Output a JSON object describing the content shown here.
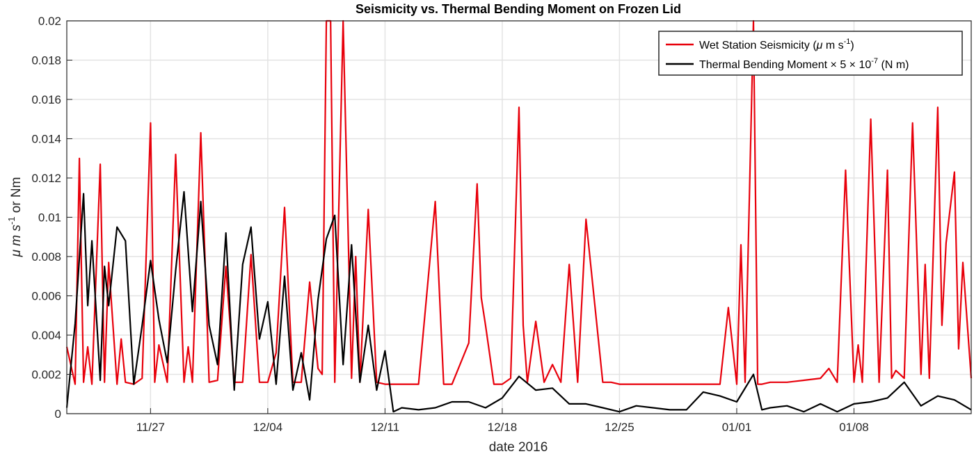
{
  "chart_data": {
    "type": "line",
    "title": "Seismicity vs. Thermal Bending Moment on Frozen Lid",
    "xlabel": "date 2016",
    "ylabel_main": "μ m s",
    "ylabel_exp": "-1",
    "ylabel_tail": "  or Nm",
    "x_range": [
      "2016-11-22",
      "2017-01-15"
    ],
    "ylim": [
      0,
      0.02
    ],
    "y_ticks": [
      0,
      0.002,
      0.004,
      0.006,
      0.008,
      0.01,
      0.012,
      0.014,
      0.016,
      0.018,
      0.02
    ],
    "y_tick_labels": [
      "0",
      "0.002",
      "0.004",
      "0.006",
      "0.008",
      "0.01",
      "0.012",
      "0.014",
      "0.016",
      "0.018",
      "0.02"
    ],
    "x_ticks": [
      "2016-11-27",
      "2016-12-04",
      "2016-12-11",
      "2016-12-18",
      "2016-12-25",
      "2017-01-01",
      "2017-01-08"
    ],
    "x_tick_labels": [
      "11/27",
      "12/04",
      "12/11",
      "12/18",
      "12/25",
      "01/01",
      "01/08"
    ],
    "grid": true,
    "legend_position": "top-right",
    "legend": [
      {
        "base": "Wet Station Seismicity (",
        "mu": "μ",
        "tail": " m s",
        "exp": "-1",
        "close": ")",
        "color": "#e8000b"
      },
      {
        "base": "Thermal Bending Moment ",
        "times1": "×",
        "five": " 5 ",
        "times2": "×",
        "ten": " 10",
        "exp": "-7",
        "units": "  (N m)",
        "color": "#000000"
      }
    ],
    "series": [
      {
        "name": "Wet Station Seismicity",
        "color": "#e8000b",
        "x": [
          "2016-11-22",
          "2016-11-22T12:00",
          "2016-11-22T18:00",
          "2016-11-23",
          "2016-11-23T06:00",
          "2016-11-23T12:00",
          "2016-11-24",
          "2016-11-24T06:00",
          "2016-11-24T12:00",
          "2016-11-25",
          "2016-11-25T06:00",
          "2016-11-25T12:00",
          "2016-11-26",
          "2016-11-26T12:00",
          "2016-11-27",
          "2016-11-27T06:00",
          "2016-11-27T12:00",
          "2016-11-28",
          "2016-11-28T12:00",
          "2016-11-29",
          "2016-11-29T06:00",
          "2016-11-29T12:00",
          "2016-11-30",
          "2016-11-30T12:00",
          "2016-12-01",
          "2016-12-01T12:00",
          "2016-12-02",
          "2016-12-02T12:00",
          "2016-12-03",
          "2016-12-03T12:00",
          "2016-12-04",
          "2016-12-04T12:00",
          "2016-12-05",
          "2016-12-05T12:00",
          "2016-12-06",
          "2016-12-06T12:00",
          "2016-12-07",
          "2016-12-07T06:00",
          "2016-12-07T12:00",
          "2016-12-07T18:00",
          "2016-12-08",
          "2016-12-08T12:00",
          "2016-12-09",
          "2016-12-09T06:00",
          "2016-12-09T12:00",
          "2016-12-10",
          "2016-12-10T12:00",
          "2016-12-11",
          "2016-12-12",
          "2016-12-13",
          "2016-12-14",
          "2016-12-14T12:00",
          "2016-12-15",
          "2016-12-16",
          "2016-12-16T12:00",
          "2016-12-16T18:00",
          "2016-12-17",
          "2016-12-17T12:00",
          "2016-12-18",
          "2016-12-18T12:00",
          "2016-12-19",
          "2016-12-19T06:00",
          "2016-12-19T12:00",
          "2016-12-20",
          "2016-12-20T12:00",
          "2016-12-21",
          "2016-12-21T12:00",
          "2016-12-22",
          "2016-12-22T12:00",
          "2016-12-23",
          "2016-12-24",
          "2016-12-24T12:00",
          "2016-12-25",
          "2016-12-26",
          "2016-12-27",
          "2016-12-28",
          "2016-12-29",
          "2016-12-30",
          "2016-12-31",
          "2016-12-31T12:00",
          "2017-01-01",
          "2017-01-01T06:00",
          "2017-01-01T12:00",
          "2017-01-02",
          "2017-01-02T06:00",
          "2017-01-02T12:00",
          "2017-01-03",
          "2017-01-04",
          "2017-01-05",
          "2017-01-06",
          "2017-01-06T12:00",
          "2017-01-07",
          "2017-01-07T12:00",
          "2017-01-08",
          "2017-01-08T06:00",
          "2017-01-08T12:00",
          "2017-01-09",
          "2017-01-09T12:00",
          "2017-01-10",
          "2017-01-10T06:00",
          "2017-01-10T12:00",
          "2017-01-11",
          "2017-01-11T12:00",
          "2017-01-12",
          "2017-01-12T06:00",
          "2017-01-12T12:00",
          "2017-01-13",
          "2017-01-13T06:00",
          "2017-01-13T12:00",
          "2017-01-14",
          "2017-01-14T06:00",
          "2017-01-14T12:00",
          "2017-01-15"
        ],
        "values": [
          0.0034,
          0.0015,
          0.013,
          0.0016,
          0.0034,
          0.0015,
          0.0127,
          0.0016,
          0.0077,
          0.0015,
          0.0038,
          0.0016,
          0.0015,
          0.0018,
          0.0148,
          0.0016,
          0.0035,
          0.0016,
          0.0132,
          0.0016,
          0.0034,
          0.0016,
          0.0143,
          0.0016,
          0.0017,
          0.0075,
          0.0016,
          0.0016,
          0.0081,
          0.0016,
          0.0016,
          0.0031,
          0.0105,
          0.0016,
          0.0016,
          0.0067,
          0.0023,
          0.002,
          0.02,
          0.02,
          0.0016,
          0.02,
          0.0018,
          0.008,
          0.0016,
          0.0104,
          0.0016,
          0.0015,
          0.0015,
          0.0015,
          0.0108,
          0.0015,
          0.0015,
          0.0036,
          0.0117,
          0.0059,
          0.0045,
          0.0015,
          0.0015,
          0.0018,
          0.0156,
          0.0045,
          0.0016,
          0.0047,
          0.0016,
          0.0025,
          0.0016,
          0.0076,
          0.0016,
          0.0099,
          0.0016,
          0.0016,
          0.0015,
          0.0015,
          0.0015,
          0.0015,
          0.0015,
          0.0015,
          0.0015,
          0.0054,
          0.0015,
          0.0086,
          0.0016,
          0.02,
          0.0015,
          0.0015,
          0.0016,
          0.0016,
          0.0017,
          0.0018,
          0.0023,
          0.0016,
          0.0124,
          0.0016,
          0.0035,
          0.0016,
          0.015,
          0.0016,
          0.0124,
          0.0018,
          0.0022,
          0.0018,
          0.0148,
          0.002,
          0.0076,
          0.0018,
          0.0156,
          0.0045,
          0.0087,
          0.0123,
          0.0033,
          0.0077,
          0.0018
        ]
      },
      {
        "name": "Thermal Bending Moment",
        "color": "#000000",
        "x": [
          "2016-11-22",
          "2016-11-22T12:00",
          "2016-11-23",
          "2016-11-23T06:00",
          "2016-11-23T12:00",
          "2016-11-24",
          "2016-11-24T06:00",
          "2016-11-24T12:00",
          "2016-11-25",
          "2016-11-25T12:00",
          "2016-11-26",
          "2016-11-26T12:00",
          "2016-11-27",
          "2016-11-27T12:00",
          "2016-11-28",
          "2016-11-28T12:00",
          "2016-11-29",
          "2016-11-29T12:00",
          "2016-11-30",
          "2016-11-30T12:00",
          "2016-12-01",
          "2016-12-01T12:00",
          "2016-12-02",
          "2016-12-02T12:00",
          "2016-12-03",
          "2016-12-03T12:00",
          "2016-12-04",
          "2016-12-04T12:00",
          "2016-12-05",
          "2016-12-05T12:00",
          "2016-12-06",
          "2016-12-06T12:00",
          "2016-12-07",
          "2016-12-07T12:00",
          "2016-12-08",
          "2016-12-08T12:00",
          "2016-12-09",
          "2016-12-09T12:00",
          "2016-12-10",
          "2016-12-10T12:00",
          "2016-12-11",
          "2016-12-11T12:00",
          "2016-12-12",
          "2016-12-13",
          "2016-12-14",
          "2016-12-15",
          "2016-12-16",
          "2016-12-17",
          "2016-12-18",
          "2016-12-19",
          "2016-12-20",
          "2016-12-21",
          "2016-12-22",
          "2016-12-23",
          "2016-12-24",
          "2016-12-25",
          "2016-12-26",
          "2016-12-27",
          "2016-12-28",
          "2016-12-29",
          "2016-12-30",
          "2016-12-31",
          "2017-01-01",
          "2017-01-02",
          "2017-01-02T12:00",
          "2017-01-03",
          "2017-01-04",
          "2017-01-05",
          "2017-01-06",
          "2017-01-07",
          "2017-01-08",
          "2017-01-09",
          "2017-01-10",
          "2017-01-11",
          "2017-01-12",
          "2017-01-13",
          "2017-01-14",
          "2017-01-15"
        ],
        "values": [
          0.0003,
          0.0046,
          0.0112,
          0.0055,
          0.0088,
          0.0017,
          0.0075,
          0.0055,
          0.0095,
          0.0088,
          0.0015,
          0.0045,
          0.0078,
          0.0048,
          0.0026,
          0.0073,
          0.0113,
          0.0052,
          0.0108,
          0.0045,
          0.0025,
          0.0092,
          0.0012,
          0.0076,
          0.0095,
          0.0038,
          0.0057,
          0.0015,
          0.007,
          0.0012,
          0.0031,
          0.0007,
          0.0058,
          0.0089,
          0.0101,
          0.0025,
          0.0086,
          0.0016,
          0.0045,
          0.0012,
          0.0032,
          0.0001,
          0.0003,
          0.0002,
          0.0003,
          0.0006,
          0.0006,
          0.0003,
          0.0008,
          0.0019,
          0.0012,
          0.0013,
          0.0005,
          0.0005,
          0.0003,
          0.0001,
          0.0004,
          0.0003,
          0.0002,
          0.0002,
          0.0011,
          0.0009,
          0.0006,
          0.002,
          0.0002,
          0.0003,
          0.0004,
          0.0001,
          0.0005,
          0.0001,
          0.0005,
          0.0006,
          0.0008,
          0.0016,
          0.0004,
          0.0009,
          0.0007,
          0.0002
        ]
      }
    ]
  }
}
